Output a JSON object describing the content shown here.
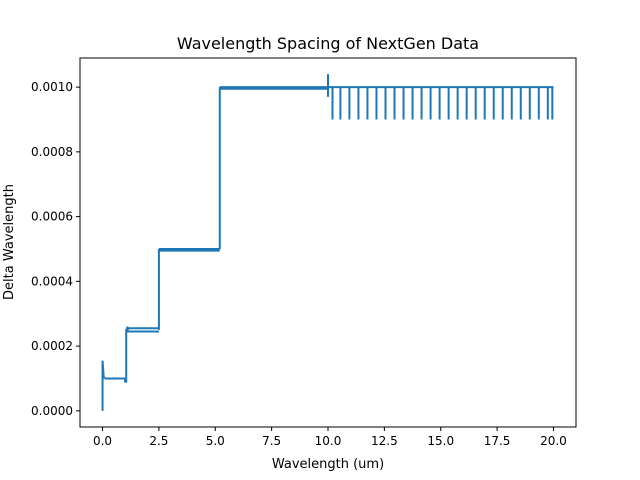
{
  "chart_data": {
    "type": "line",
    "title": "Wavelength Spacing of NextGen Data",
    "xlabel": "Wavelength (um)",
    "ylabel": "Delta Wavelength",
    "xlim": [
      -1.0,
      21.0
    ],
    "ylim": [
      -5e-05,
      0.00109
    ],
    "xticks": [
      0.0,
      2.5,
      5.0,
      7.5,
      10.0,
      12.5,
      15.0,
      17.5,
      20.0
    ],
    "xtick_labels": [
      "0.0",
      "2.5",
      "5.0",
      "7.5",
      "10.0",
      "12.5",
      "15.0",
      "17.5",
      "20.0"
    ],
    "yticks": [
      0.0,
      0.0002,
      0.0004,
      0.0006,
      0.0008,
      0.001
    ],
    "ytick_labels": [
      "0.0000",
      "0.0002",
      "0.0004",
      "0.0006",
      "0.0008",
      "0.0010"
    ],
    "grid": false,
    "series": [
      {
        "color": "#1f77b4",
        "segments": [
          {
            "x": [
              0.0,
              0.0,
              0.05,
              0.1
            ],
            "y": [
              0.0,
              0.000155,
              0.000105,
              0.0001
            ]
          },
          {
            "x": [
              0.1,
              1.0
            ],
            "y": [
              0.0001,
              0.0001
            ]
          },
          {
            "x": [
              1.0,
              1.0,
              1.05,
              1.05,
              1.1,
              1.1,
              1.15
            ],
            "y": [
              0.0001,
              9e-05,
              9e-05,
              0.00025,
              0.00025,
              0.00026,
              0.00025
            ]
          },
          {
            "x": [
              1.05,
              2.5
            ],
            "y": [
              0.000245,
              0.000245
            ]
          },
          {
            "x": [
              1.05,
              2.5
            ],
            "y": [
              0.000255,
              0.000255
            ]
          },
          {
            "x": [
              2.5,
              2.5
            ],
            "y": [
              0.00025,
              0.0005
            ]
          },
          {
            "x": [
              2.5,
              5.2
            ],
            "y": [
              0.000495,
              0.000495
            ]
          },
          {
            "x": [
              2.5,
              5.2
            ],
            "y": [
              0.0005,
              0.0005
            ]
          },
          {
            "x": [
              5.2,
              5.2
            ],
            "y": [
              0.0005,
              0.001
            ]
          },
          {
            "x": [
              5.2,
              10.0
            ],
            "y": [
              0.000995,
              0.000995
            ]
          },
          {
            "x": [
              5.2,
              10.0
            ],
            "y": [
              0.001,
              0.001
            ]
          },
          {
            "x": [
              10.0,
              10.0,
              10.0
            ],
            "y": [
              0.00104,
              0.00097,
              0.001
            ]
          },
          {
            "x": [
              10.0,
              20.0
            ],
            "y": [
              0.001,
              0.001
            ]
          }
        ],
        "spikes": {
          "y_top": 0.001,
          "y_bottom": 0.0009,
          "x": [
            10.2,
            10.55,
            10.95,
            11.35,
            11.75,
            12.15,
            12.55,
            12.95,
            13.35,
            13.75,
            14.15,
            14.55,
            14.95,
            15.35,
            15.75,
            16.15,
            16.55,
            16.95,
            17.35,
            17.75,
            18.15,
            18.55,
            18.95,
            19.35,
            19.75,
            19.95
          ]
        }
      }
    ]
  }
}
